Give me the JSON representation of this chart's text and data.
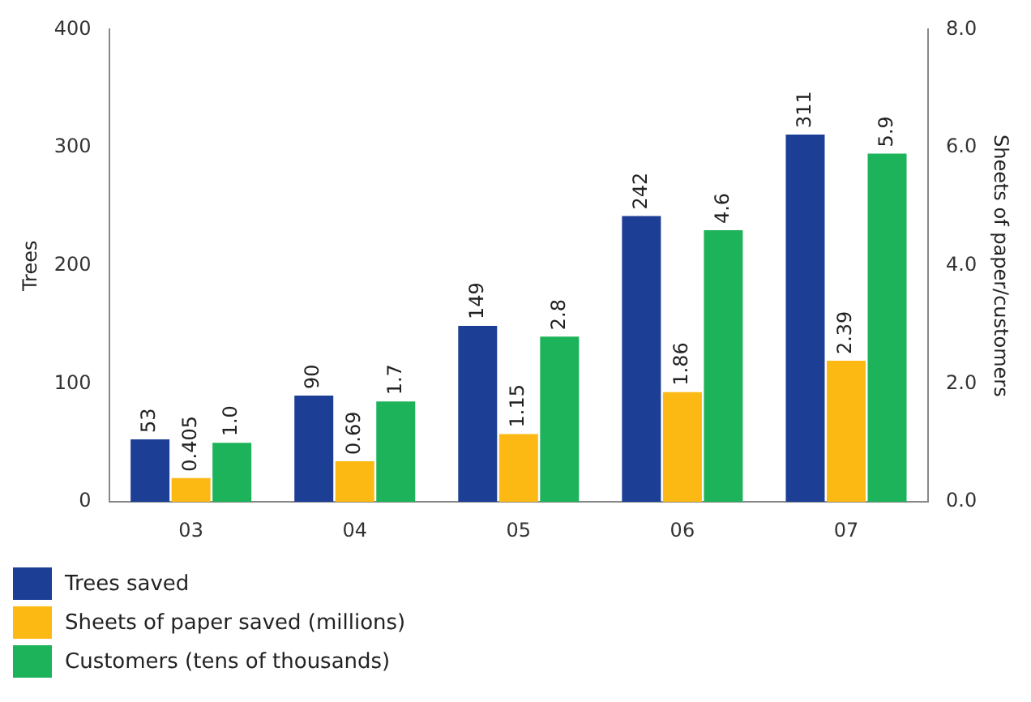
{
  "chart_data": {
    "type": "bar",
    "categories": [
      "03",
      "04",
      "05",
      "06",
      "07"
    ],
    "ylabel": "Trees",
    "y2label": "Sheets of paper/customers",
    "ylim": [
      0,
      400
    ],
    "yticks": [
      0,
      100,
      200,
      300,
      400
    ],
    "y2lim": [
      0,
      8
    ],
    "y2ticks": [
      {
        "value": 0,
        "label": "0.0"
      },
      {
        "value": 2,
        "label": "2.0"
      },
      {
        "value": 4,
        "label": "4.0"
      },
      {
        "value": 6,
        "label": "6.0"
      },
      {
        "value": 8,
        "label": "8.0"
      }
    ],
    "grid": false,
    "legend": "bottom left",
    "series": [
      {
        "name": "Trees saved",
        "color": "#1c3f95",
        "values": [
          53,
          90,
          149,
          242,
          311
        ],
        "value_labels": [
          "53",
          "90",
          "149",
          "242",
          "311"
        ]
      },
      {
        "name": "Sheets of paper saved (millions)",
        "color": "#fdb913",
        "axis": "y2",
        "values": [
          0.405,
          0.69,
          1.15,
          1.86,
          2.39
        ],
        "value_labels": [
          "0.405",
          "0.69",
          "1.15",
          "1.86",
          "2.39"
        ]
      },
      {
        "name": "Customers (tens of thousands)",
        "color": "#1db35a",
        "axis": "y2",
        "values": [
          1.0,
          1.7,
          2.8,
          4.6,
          5.9
        ],
        "value_labels": [
          "1.0",
          "1.7",
          "2.8",
          "4.6",
          "5.9"
        ]
      }
    ]
  }
}
